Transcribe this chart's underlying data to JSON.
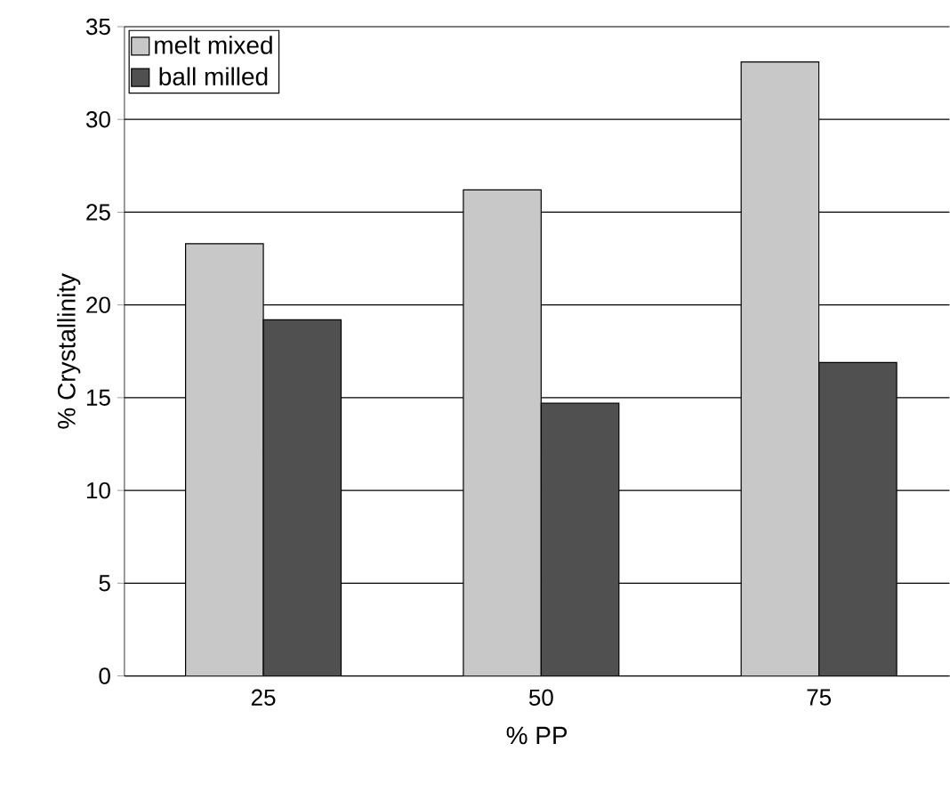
{
  "chart_data": {
    "type": "bar",
    "xlabel": "% PP",
    "ylabel": "% Crystallinity",
    "categories": [
      "25",
      "50",
      "75"
    ],
    "series": [
      {
        "name": "melt mixed",
        "color": "#c8c8c8",
        "values": [
          23.3,
          26.2,
          33.1
        ]
      },
      {
        "name": "ball milled",
        "color": "#505050",
        "values": [
          19.2,
          14.7,
          16.9
        ]
      }
    ],
    "ylim": [
      0,
      35
    ],
    "yticks": [
      0,
      5,
      10,
      15,
      20,
      25,
      30,
      35
    ],
    "grid": "y",
    "legend": "top left"
  }
}
